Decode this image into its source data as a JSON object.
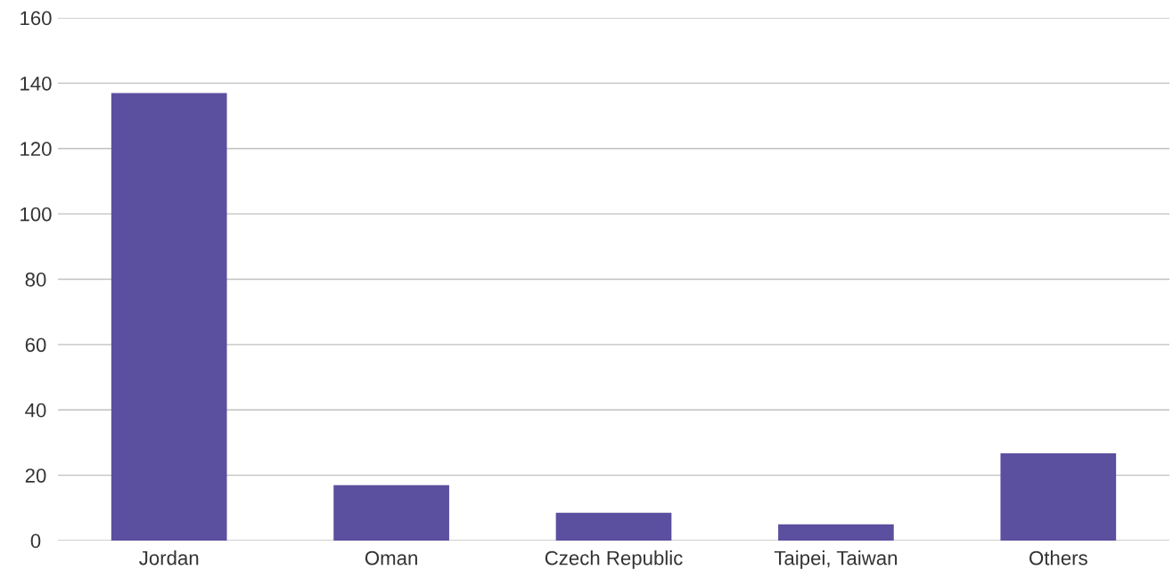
{
  "chart_data": {
    "type": "bar",
    "categories": [
      "Jordan",
      "Oman",
      "Czech Republic",
      "Taipei, Taiwan",
      "Others"
    ],
    "values": [
      137,
      17,
      8.5,
      5,
      26.7
    ],
    "color": "#5b4f9f",
    "ylim": [
      0,
      160
    ],
    "yticks": [
      0,
      20,
      40,
      60,
      80,
      100,
      120,
      140,
      160
    ],
    "grid": "y"
  }
}
